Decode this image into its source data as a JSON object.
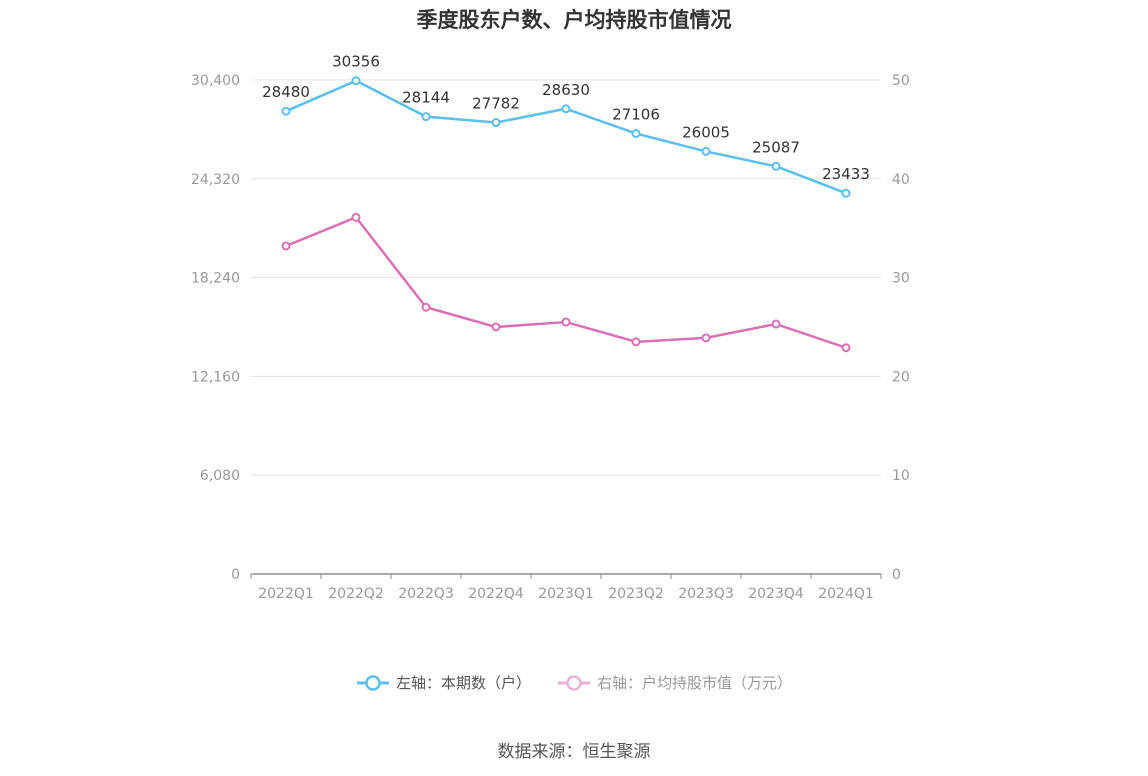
{
  "chart_data": {
    "type": "line",
    "title": "季度股东户数、户均持股市值情况",
    "categories": [
      "2022Q1",
      "2022Q2",
      "2022Q3",
      "2022Q4",
      "2023Q1",
      "2023Q2",
      "2023Q3",
      "2023Q4",
      "2024Q1"
    ],
    "series": [
      {
        "name": "左轴：本期数（户）",
        "axis": "left",
        "color": "#5bbfee",
        "values": [
          28480,
          30356,
          28144,
          27782,
          28630,
          27106,
          26005,
          25087,
          23433
        ],
        "data_labels": [
          "28480",
          "30356",
          "28144",
          "27782",
          "28630",
          "27106",
          "26005",
          "25087",
          "23433"
        ]
      },
      {
        "name": "右轴：户均持股市值（万元）",
        "axis": "right",
        "color": "#d96fb5",
        "values": [
          33.2,
          36.1,
          27.0,
          25.0,
          25.5,
          23.5,
          23.9,
          25.3,
          22.9
        ]
      }
    ],
    "left_axis": {
      "min": 0,
      "max": 30400,
      "ticks": [
        "0",
        "6,080",
        "12,160",
        "18,240",
        "24,320",
        "30,400"
      ]
    },
    "right_axis": {
      "min": 0,
      "max": 50,
      "ticks": [
        "0",
        "10",
        "20",
        "30",
        "40",
        "50"
      ]
    },
    "grid": true,
    "legend_position": "bottom-center",
    "source": "数据来源：恒生聚源"
  }
}
